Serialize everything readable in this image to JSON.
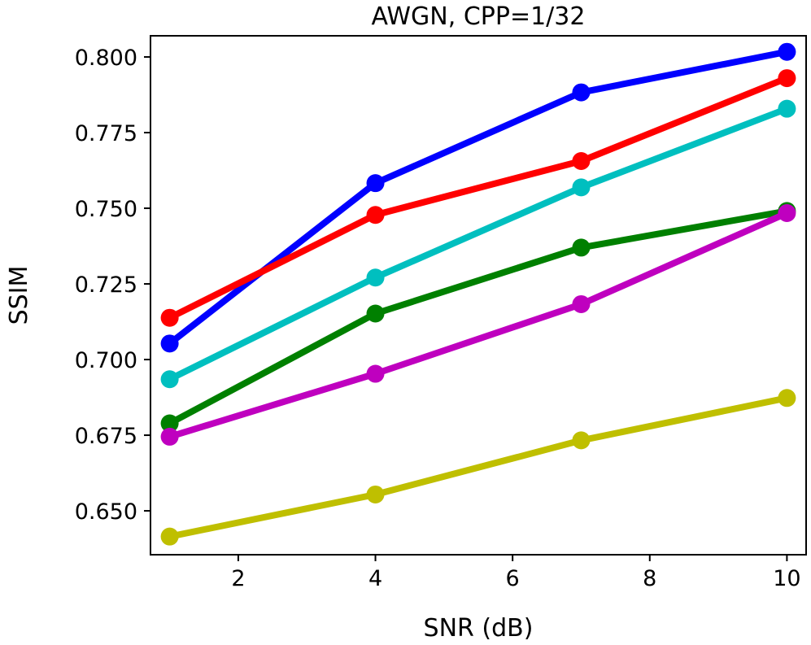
{
  "chart_data": {
    "type": "line",
    "title": "AWGN, CPP=1/32",
    "xlabel": "SNR (dB)",
    "ylabel": "SSIM",
    "xlim": [
      0.72,
      10.28
    ],
    "ylim": [
      0.6355,
      0.807
    ],
    "xticks": [
      2,
      4,
      6,
      8,
      10
    ],
    "xtick_labels": [
      "2",
      "4",
      "6",
      "8",
      "10"
    ],
    "yticks": [
      0.65,
      0.675,
      0.7,
      0.725,
      0.75,
      0.775,
      0.8
    ],
    "ytick_labels": [
      "0.650",
      "0.675",
      "0.700",
      "0.725",
      "0.750",
      "0.775",
      "0.800"
    ],
    "grid": false,
    "x": [
      1,
      4,
      7,
      10
    ],
    "series": [
      {
        "name": "blue",
        "color": "#0000ff",
        "values": [
          0.7053,
          0.7583,
          0.7883,
          0.8017
        ]
      },
      {
        "name": "red",
        "color": "#ff0000",
        "values": [
          0.7138,
          0.7478,
          0.7656,
          0.793
        ]
      },
      {
        "name": "cyan",
        "color": "#00bfbf",
        "values": [
          0.6935,
          0.7271,
          0.7569,
          0.7829
        ]
      },
      {
        "name": "green",
        "color": "#008000",
        "values": [
          0.6789,
          0.7152,
          0.737,
          0.7491
        ]
      },
      {
        "name": "magenta",
        "color": "#bf00bf",
        "values": [
          0.6745,
          0.6953,
          0.7183,
          0.7484
        ]
      },
      {
        "name": "olive",
        "color": "#bfbf00",
        "values": [
          0.6415,
          0.6554,
          0.6733,
          0.6873
        ]
      }
    ]
  }
}
